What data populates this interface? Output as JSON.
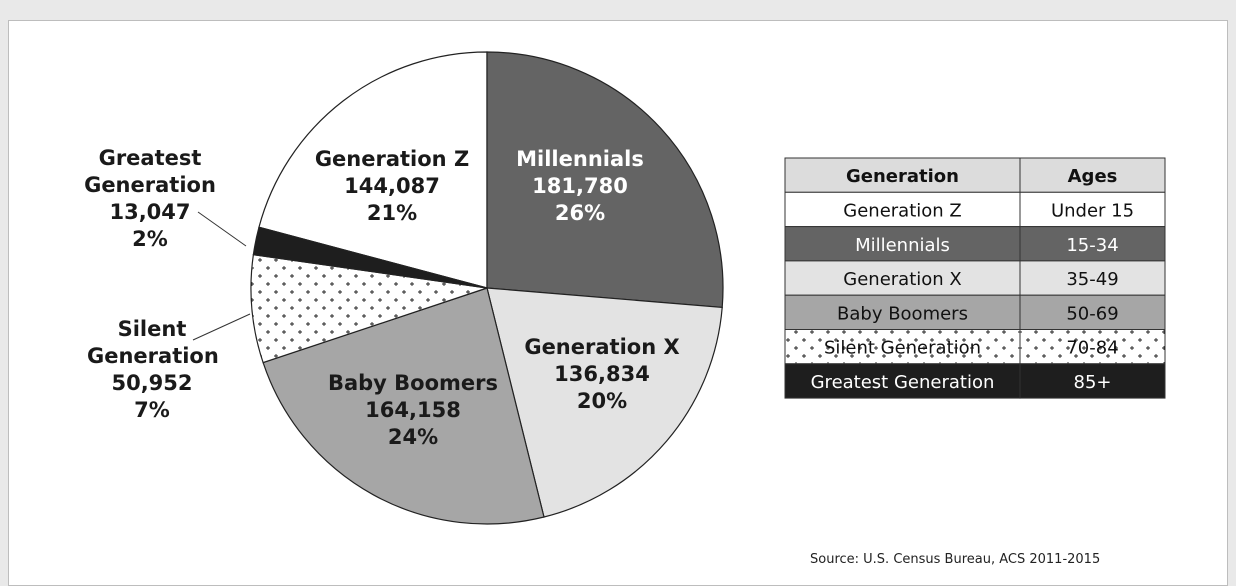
{
  "chart_data": {
    "type": "pie",
    "categories": [
      "Generation Z",
      "Millennials",
      "Generation X",
      "Baby Boomers",
      "Silent Generation",
      "Greatest Generation"
    ],
    "values": [
      144087,
      181780,
      136834,
      164158,
      50952,
      13047
    ],
    "value_labels": [
      "144,087",
      "181,780",
      "136,834",
      "164,158",
      "50,952",
      "13,047"
    ],
    "shares": [
      21,
      26,
      20,
      24,
      7,
      2
    ],
    "share_labels": [
      "21%",
      "26%",
      "20%",
      "24%",
      "7%",
      "2%"
    ],
    "colors": [
      "#ffffff",
      "#646464",
      "#e3e3e3",
      "#a6a6a6",
      "#ffffff",
      "#1e1e1e"
    ],
    "patterned": [
      false,
      false,
      false,
      false,
      true,
      false
    ]
  },
  "table": {
    "header": [
      "Generation",
      "Ages"
    ],
    "rows": [
      [
        "Generation Z",
        "Under 15"
      ],
      [
        "Millennials",
        "15-34"
      ],
      [
        "Generation X",
        "35-49"
      ],
      [
        "Baby Boomers",
        "50-69"
      ],
      [
        "Silent Generation",
        "70-84"
      ],
      [
        "Greatest Generation",
        "85+"
      ]
    ]
  },
  "source": "Source: U.S. Census Bureau, ACS 2011-2015"
}
